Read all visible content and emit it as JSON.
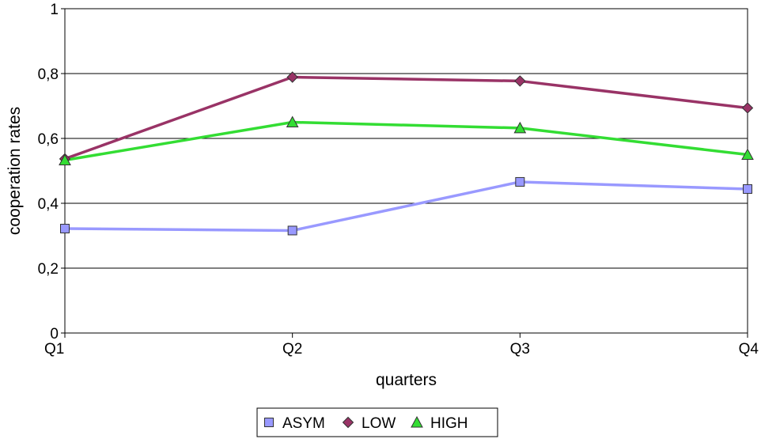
{
  "chart_data": {
    "type": "line",
    "categories": [
      "Q1",
      "Q2",
      "Q3",
      "Q4"
    ],
    "xlabel": "quarters",
    "ylabel": "cooperation rates",
    "ylim": [
      0,
      1
    ],
    "yticks": [
      0,
      0.2,
      0.4,
      0.6,
      0.8,
      1
    ],
    "ytick_labels": [
      "0",
      "0,2",
      "0,4",
      "0,6",
      "0,8",
      "1"
    ],
    "grid": "horizontal",
    "legend_position": "bottom",
    "series": [
      {
        "name": "ASYM",
        "values": [
          0.322,
          0.316,
          0.466,
          0.444
        ],
        "color": "#9999ff",
        "marker": "square"
      },
      {
        "name": "LOW",
        "values": [
          0.537,
          0.789,
          0.777,
          0.694
        ],
        "color": "#993366",
        "marker": "diamond"
      },
      {
        "name": "HIGH",
        "values": [
          0.533,
          0.65,
          0.632,
          0.55
        ],
        "color": "#33dd33",
        "marker": "triangle"
      }
    ]
  }
}
